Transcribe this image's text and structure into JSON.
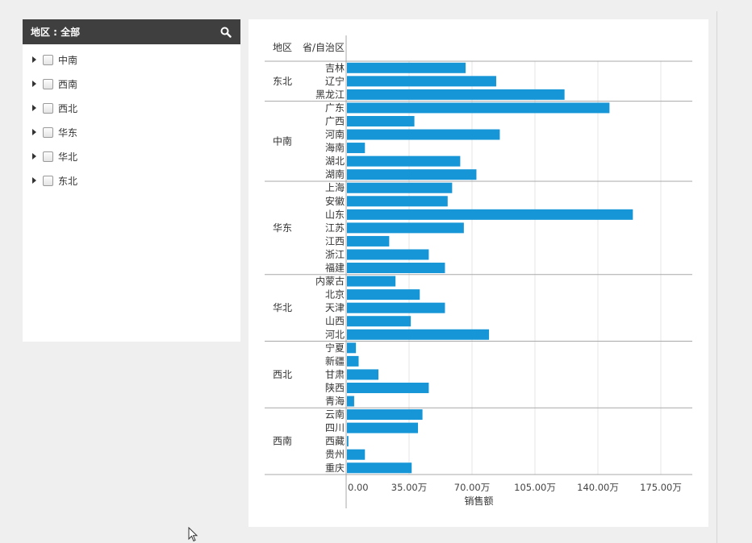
{
  "filter": {
    "title": "地区 : 全部",
    "search_icon": "search-icon",
    "items": [
      {
        "label": "中南"
      },
      {
        "label": "西南"
      },
      {
        "label": "西北"
      },
      {
        "label": "华东"
      },
      {
        "label": "华北"
      },
      {
        "label": "东北"
      }
    ]
  },
  "chart_data": {
    "type": "bar",
    "orientation": "horizontal",
    "header_region": "地区",
    "header_province": "省/自治区",
    "xlabel": "销售额",
    "xlim": [
      0,
      1925000
    ],
    "x_ticks": [
      {
        "value": 0,
        "label": "0.00"
      },
      {
        "value": 350000,
        "label": "35.00万"
      },
      {
        "value": 700000,
        "label": "70.00万"
      },
      {
        "value": 1050000,
        "label": "105.00万"
      },
      {
        "value": 1400000,
        "label": "140.00万"
      },
      {
        "value": 1750000,
        "label": "175.00万"
      }
    ],
    "grid": true,
    "bar_color": "#1696d6",
    "groups": [
      {
        "region": "东北",
        "items": [
          {
            "province": "吉林",
            "value": 660000
          },
          {
            "province": "辽宁",
            "value": 830000
          },
          {
            "province": "黑龙江",
            "value": 1210000
          }
        ]
      },
      {
        "region": "中南",
        "items": [
          {
            "province": "广东",
            "value": 1460000
          },
          {
            "province": "广西",
            "value": 375000
          },
          {
            "province": "河南",
            "value": 850000
          },
          {
            "province": "海南",
            "value": 100000
          },
          {
            "province": "湖北",
            "value": 630000
          },
          {
            "province": "湖南",
            "value": 720000
          }
        ]
      },
      {
        "region": "华东",
        "items": [
          {
            "province": "上海",
            "value": 585000
          },
          {
            "province": "安徽",
            "value": 560000
          },
          {
            "province": "山东",
            "value": 1590000
          },
          {
            "province": "江苏",
            "value": 650000
          },
          {
            "province": "江西",
            "value": 235000
          },
          {
            "province": "浙江",
            "value": 455000
          },
          {
            "province": "福建",
            "value": 545000
          }
        ]
      },
      {
        "region": "华北",
        "items": [
          {
            "province": "内蒙古",
            "value": 270000
          },
          {
            "province": "北京",
            "value": 405000
          },
          {
            "province": "天津",
            "value": 545000
          },
          {
            "province": "山西",
            "value": 355000
          },
          {
            "province": "河北",
            "value": 790000
          }
        ]
      },
      {
        "region": "西北",
        "items": [
          {
            "province": "宁夏",
            "value": 50000
          },
          {
            "province": "新疆",
            "value": 65000
          },
          {
            "province": "甘肃",
            "value": 175000
          },
          {
            "province": "陕西",
            "value": 455000
          },
          {
            "province": "青海",
            "value": 40000
          }
        ]
      },
      {
        "region": "西南",
        "items": [
          {
            "province": "云南",
            "value": 420000
          },
          {
            "province": "四川",
            "value": 395000
          },
          {
            "province": "西藏",
            "value": 8000
          },
          {
            "province": "贵州",
            "value": 100000
          },
          {
            "province": "重庆",
            "value": 360000
          }
        ]
      }
    ]
  }
}
